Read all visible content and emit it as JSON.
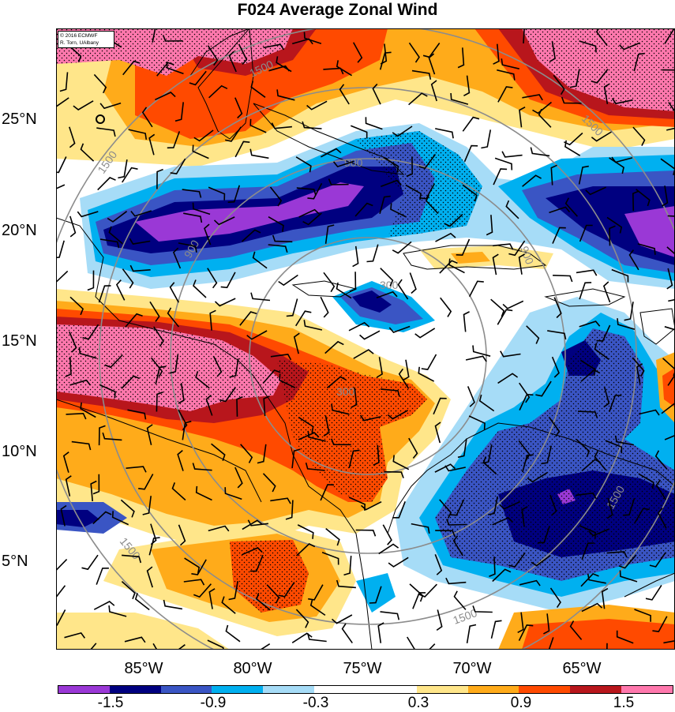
{
  "title": "F024 Average Zonal Wind",
  "credit": {
    "line1": "© 2016 ECMWF",
    "line2": "R. Torn, UAlbany"
  },
  "lat_labels": [
    "25°N",
    "20°N",
    "15°N",
    "10°N",
    "5°N"
  ],
  "lon_labels": [
    "85°W",
    "80°W",
    "75°W",
    "70°W",
    "65°W"
  ],
  "colorbar": {
    "colors": [
      "#9a38d6",
      "#000080",
      "#3a55c4",
      "#00b0f0",
      "#a6dcf7",
      "#ffffff",
      "#ffffff",
      "#ffe68a",
      "#ffab1a",
      "#ff4a00",
      "#b8161c",
      "#ff78ad"
    ],
    "labels": [
      "-1.5",
      "-0.9",
      "-0.3",
      "0.3",
      "0.9",
      "1.5"
    ]
  },
  "range_ring_labels": [
    "1500",
    "900",
    "300",
    "300",
    "900",
    "900",
    "1500",
    "1500",
    "1500",
    "1500",
    "1500"
  ],
  "colors": {
    "purple": "#9a38d6",
    "navy": "#000080",
    "blue": "#3a55c4",
    "cyan": "#00b0f0",
    "lightblue": "#a6dcf7",
    "yellow": "#ffe68a",
    "orange": "#ffab1a",
    "redorange": "#ff4a00",
    "darkred": "#b8161c",
    "pink": "#ff78ad",
    "ring": "#8c8c8c"
  }
}
